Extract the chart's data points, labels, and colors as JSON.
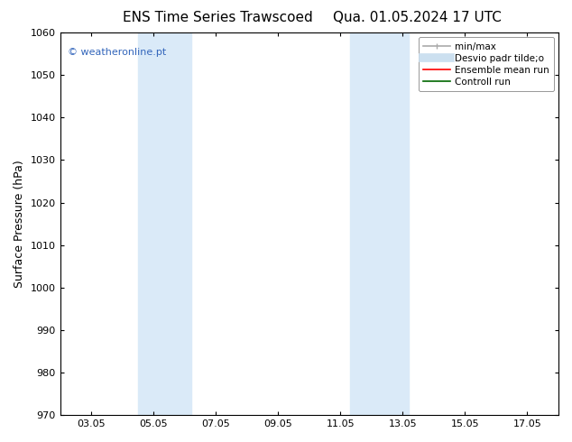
{
  "title_left": "ENS Time Series Trawscoed",
  "title_right": "Qua. 01.05.2024 17 UTC",
  "ylabel": "Surface Pressure (hPa)",
  "ylim": [
    970,
    1060
  ],
  "yticks": [
    970,
    980,
    990,
    1000,
    1010,
    1020,
    1030,
    1040,
    1050,
    1060
  ],
  "xtick_labels": [
    "03.05",
    "05.05",
    "07.05",
    "09.05",
    "11.05",
    "13.05",
    "15.05",
    "17.05"
  ],
  "xtick_positions": [
    1,
    3,
    5,
    7,
    9,
    11,
    13,
    15
  ],
  "xlim": [
    0,
    16
  ],
  "bg_color": "#ffffff",
  "plot_bg_color": "#ffffff",
  "shaded_bands": [
    {
      "x_start": 2.5,
      "x_end": 4.2
    },
    {
      "x_start": 9.3,
      "x_end": 11.2
    }
  ],
  "shade_color": "#daeaf8",
  "watermark_text": "© weatheronline.pt",
  "watermark_color": "#3366bb",
  "legend_label_1": "min/max",
  "legend_label_2": "Desvio padr tilde;o",
  "legend_label_3": "Ensemble mean run",
  "legend_label_4": "Controll run",
  "legend_color_1": "#aaaaaa",
  "legend_color_2": "#cce0f0",
  "legend_color_3": "#ff0000",
  "legend_color_4": "#006600",
  "title_fontsize": 11,
  "ylabel_fontsize": 9,
  "tick_fontsize": 8,
  "legend_fontsize": 7.5,
  "watermark_fontsize": 8
}
